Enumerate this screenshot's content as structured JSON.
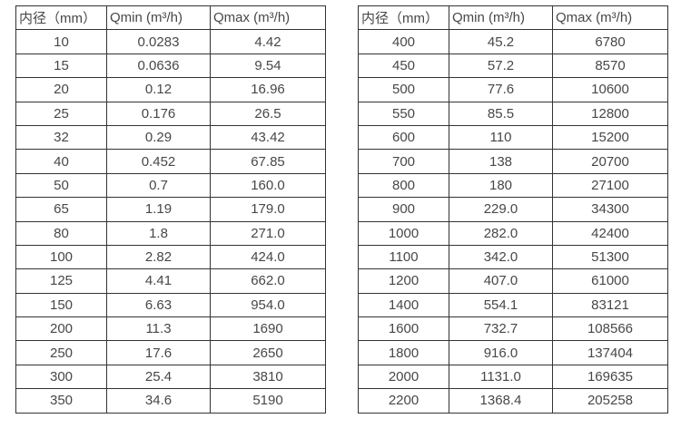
{
  "page": {
    "background": "#ffffff",
    "text_color": "#474747",
    "border_color": "#333333"
  },
  "tables": [
    {
      "name": "small-diameter-flow-table",
      "headers": [
        "内径（mm）",
        "Qmin (m³/h)",
        "Qmax (m³/h)"
      ],
      "rows": [
        [
          "10",
          "0.0283",
          "4.42"
        ],
        [
          "15",
          "0.0636",
          "9.54"
        ],
        [
          "20",
          "0.12",
          "16.96"
        ],
        [
          "25",
          "0.176",
          "26.5"
        ],
        [
          "32",
          "0.29",
          "43.42"
        ],
        [
          "40",
          "0.452",
          "67.85"
        ],
        [
          "50",
          "0.7",
          "160.0"
        ],
        [
          "65",
          "1.19",
          "179.0"
        ],
        [
          "80",
          "1.8",
          "271.0"
        ],
        [
          "100",
          "2.82",
          "424.0"
        ],
        [
          "125",
          "4.41",
          "662.0"
        ],
        [
          "150",
          "6.63",
          "954.0"
        ],
        [
          "200",
          "11.3",
          "1690"
        ],
        [
          "250",
          "17.6",
          "2650"
        ],
        [
          "300",
          "25.4",
          "3810"
        ],
        [
          "350",
          "34.6",
          "5190"
        ]
      ]
    },
    {
      "name": "large-diameter-flow-table",
      "headers": [
        "内径（mm）",
        "Qmin (m³/h)",
        "Qmax (m³/h)"
      ],
      "rows": [
        [
          "400",
          "45.2",
          "6780"
        ],
        [
          "450",
          "57.2",
          "8570"
        ],
        [
          "500",
          "77.6",
          "10600"
        ],
        [
          "550",
          "85.5",
          "12800"
        ],
        [
          "600",
          "110",
          "15200"
        ],
        [
          "700",
          "138",
          "20700"
        ],
        [
          "800",
          "180",
          "27100"
        ],
        [
          "900",
          "229.0",
          "34300"
        ],
        [
          "1000",
          "282.0",
          "42400"
        ],
        [
          "1100",
          "342.0",
          "51300"
        ],
        [
          "1200",
          "407.0",
          "61000"
        ],
        [
          "1400",
          "554.1",
          "83121"
        ],
        [
          "1600",
          "732.7",
          "108566"
        ],
        [
          "1800",
          "916.0",
          "137404"
        ],
        [
          "2000",
          "1131.0",
          "169635"
        ],
        [
          "2200",
          "1368.4",
          "205258"
        ]
      ]
    }
  ]
}
